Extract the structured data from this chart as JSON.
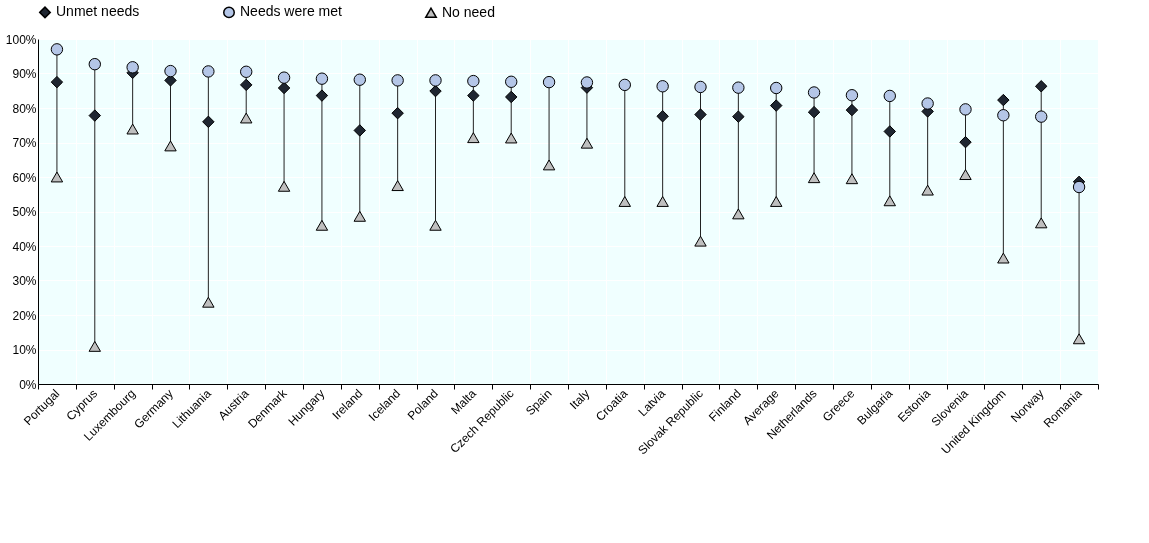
{
  "chart_data": {
    "type": "scatter",
    "categories": [
      "Portugal",
      "Cyprus",
      "Luxembourg",
      "Germany",
      "Lithuania",
      "Austria",
      "Denmark",
      "Hungary",
      "Ireland",
      "Iceland",
      "Poland",
      "Malta",
      "Czech Republic",
      "Spain",
      "Italy",
      "Croatia",
      "Latvia",
      "Slovak Republic",
      "Finland",
      "Average",
      "Netherlands",
      "Greece",
      "Bulgaria",
      "Estonia",
      "Slovenia",
      "United Kingdom",
      "Norway",
      "Romania"
    ],
    "series": [
      {
        "name": "Unmet needs",
        "color": "#1f2631",
        "marker": "diamond",
        "values": [
          87.5,
          77.8,
          90.2,
          88,
          76,
          86.7,
          85.8,
          83.6,
          73.5,
          78.5,
          84.9,
          83.6,
          83.2,
          null,
          85.9,
          null,
          77.6,
          78.1,
          77.5,
          80.7,
          78.8,
          79.4,
          73.2,
          79,
          70.1,
          82.3,
          86.3,
          58.6
        ]
      },
      {
        "name": "Needs were met",
        "color": "#b4c6e7",
        "marker": "circle",
        "values": [
          97,
          92.7,
          91.8,
          90.7,
          90.6,
          90.5,
          88.8,
          88.5,
          88.2,
          88,
          88,
          87.8,
          87.6,
          87.5,
          87.4,
          86.7,
          86.3,
          86.1,
          85.9,
          85.8,
          84.5,
          83.7,
          83.5,
          81.3,
          79.6,
          77.9,
          77.5,
          57.1
        ]
      },
      {
        "name": "No need",
        "color": "#bfbfbf",
        "marker": "triangle",
        "values": [
          60,
          10.9,
          73.9,
          69,
          23.7,
          77.1,
          57.3,
          46,
          48.6,
          57.5,
          46,
          71.4,
          71.3,
          63.5,
          69.8,
          52.9,
          52.9,
          41.4,
          49.3,
          52.9,
          59.8,
          59.5,
          53.1,
          56.2,
          60.7,
          36.5,
          46.7,
          13.1
        ]
      }
    ],
    "ylim": [
      0,
      100
    ],
    "yticks": [
      {
        "value": 0,
        "label": "0%"
      },
      {
        "value": 10,
        "label": "10%"
      },
      {
        "value": 20,
        "label": "20%"
      },
      {
        "value": 30,
        "label": "30%"
      },
      {
        "value": 40,
        "label": "40%"
      },
      {
        "value": 50,
        "label": "50%"
      },
      {
        "value": 60,
        "label": "60%"
      },
      {
        "value": 70,
        "label": "70%"
      },
      {
        "value": 80,
        "label": "80%"
      },
      {
        "value": 90,
        "label": "90%"
      },
      {
        "value": 100,
        "label": "100%"
      }
    ],
    "grid": true,
    "legend": "top"
  }
}
